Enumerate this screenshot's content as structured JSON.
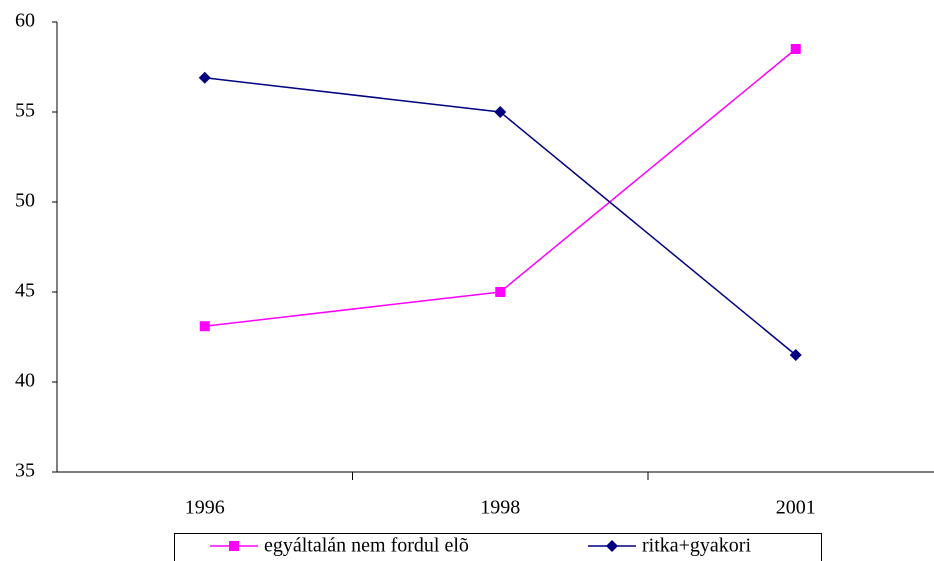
{
  "chart_data": {
    "type": "line",
    "categories": [
      "1996",
      "1998",
      "2001"
    ],
    "series": [
      {
        "name": "egyáltalán nem fordul elõ",
        "color": "#ff00ff",
        "marker": "square",
        "values": [
          43.1,
          45,
          58.5
        ]
      },
      {
        "name": "ritka+gyakori",
        "color": "#000080",
        "marker": "diamond",
        "values": [
          56.9,
          55,
          41.5
        ]
      }
    ],
    "ylim": [
      35,
      60
    ],
    "yticks": [
      35,
      40,
      45,
      50,
      55,
      60
    ],
    "grid": false,
    "legend": "bottom"
  }
}
